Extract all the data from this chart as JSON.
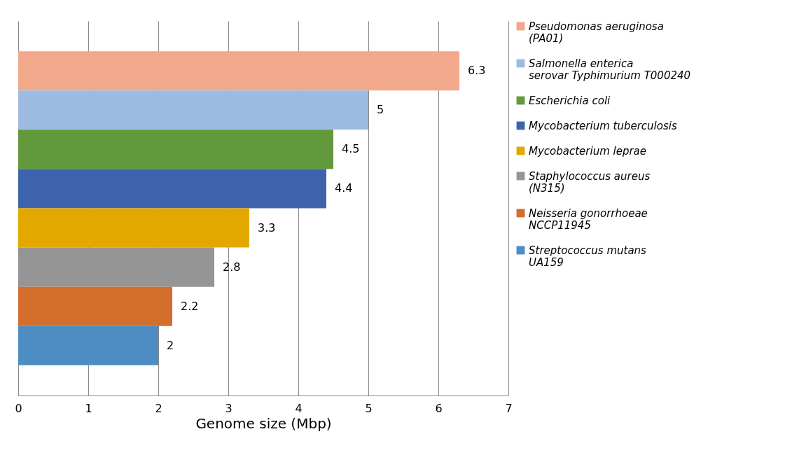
{
  "chart_data": {
    "type": "bar",
    "orientation": "horizontal",
    "xlabel": "Genome size (Mbp)",
    "categories": [
      null
    ],
    "series": [
      {
        "name": "Pseudomonas aeruginosa (PA01)",
        "color": "#f2a88a",
        "values": [
          6.3
        ]
      },
      {
        "name": "Salmonella enterica serovar Typhimurium T000240",
        "color": "#9dbbe0",
        "values": [
          5
        ]
      },
      {
        "name": "Escherichia coli",
        "color": "#63993d",
        "values": [
          4.5
        ]
      },
      {
        "name": "Mycobacterium tuberculosis",
        "color": "#3e63ae",
        "values": [
          4.4
        ]
      },
      {
        "name": "Mycobacterium leprae",
        "color": "#e3a800",
        "values": [
          3.3
        ]
      },
      {
        "name": "Staphylococcus aureus (N315)",
        "color": "#959595",
        "values": [
          2.8
        ]
      },
      {
        "name": "Neisseria gonorrhoeae NCCP11945",
        "color": "#d46e2c",
        "values": [
          2.2
        ]
      },
      {
        "name": " Streptococcus mutans UA159",
        "color": "#4e8dc3",
        "values": [
          2
        ]
      }
    ],
    "xlim": [
      0,
      7
    ],
    "xticks": [
      0,
      1,
      2,
      3,
      4,
      5,
      6,
      7
    ],
    "grid": "x",
    "legend": "right",
    "data_labels": true,
    "tick_labels": "x"
  }
}
